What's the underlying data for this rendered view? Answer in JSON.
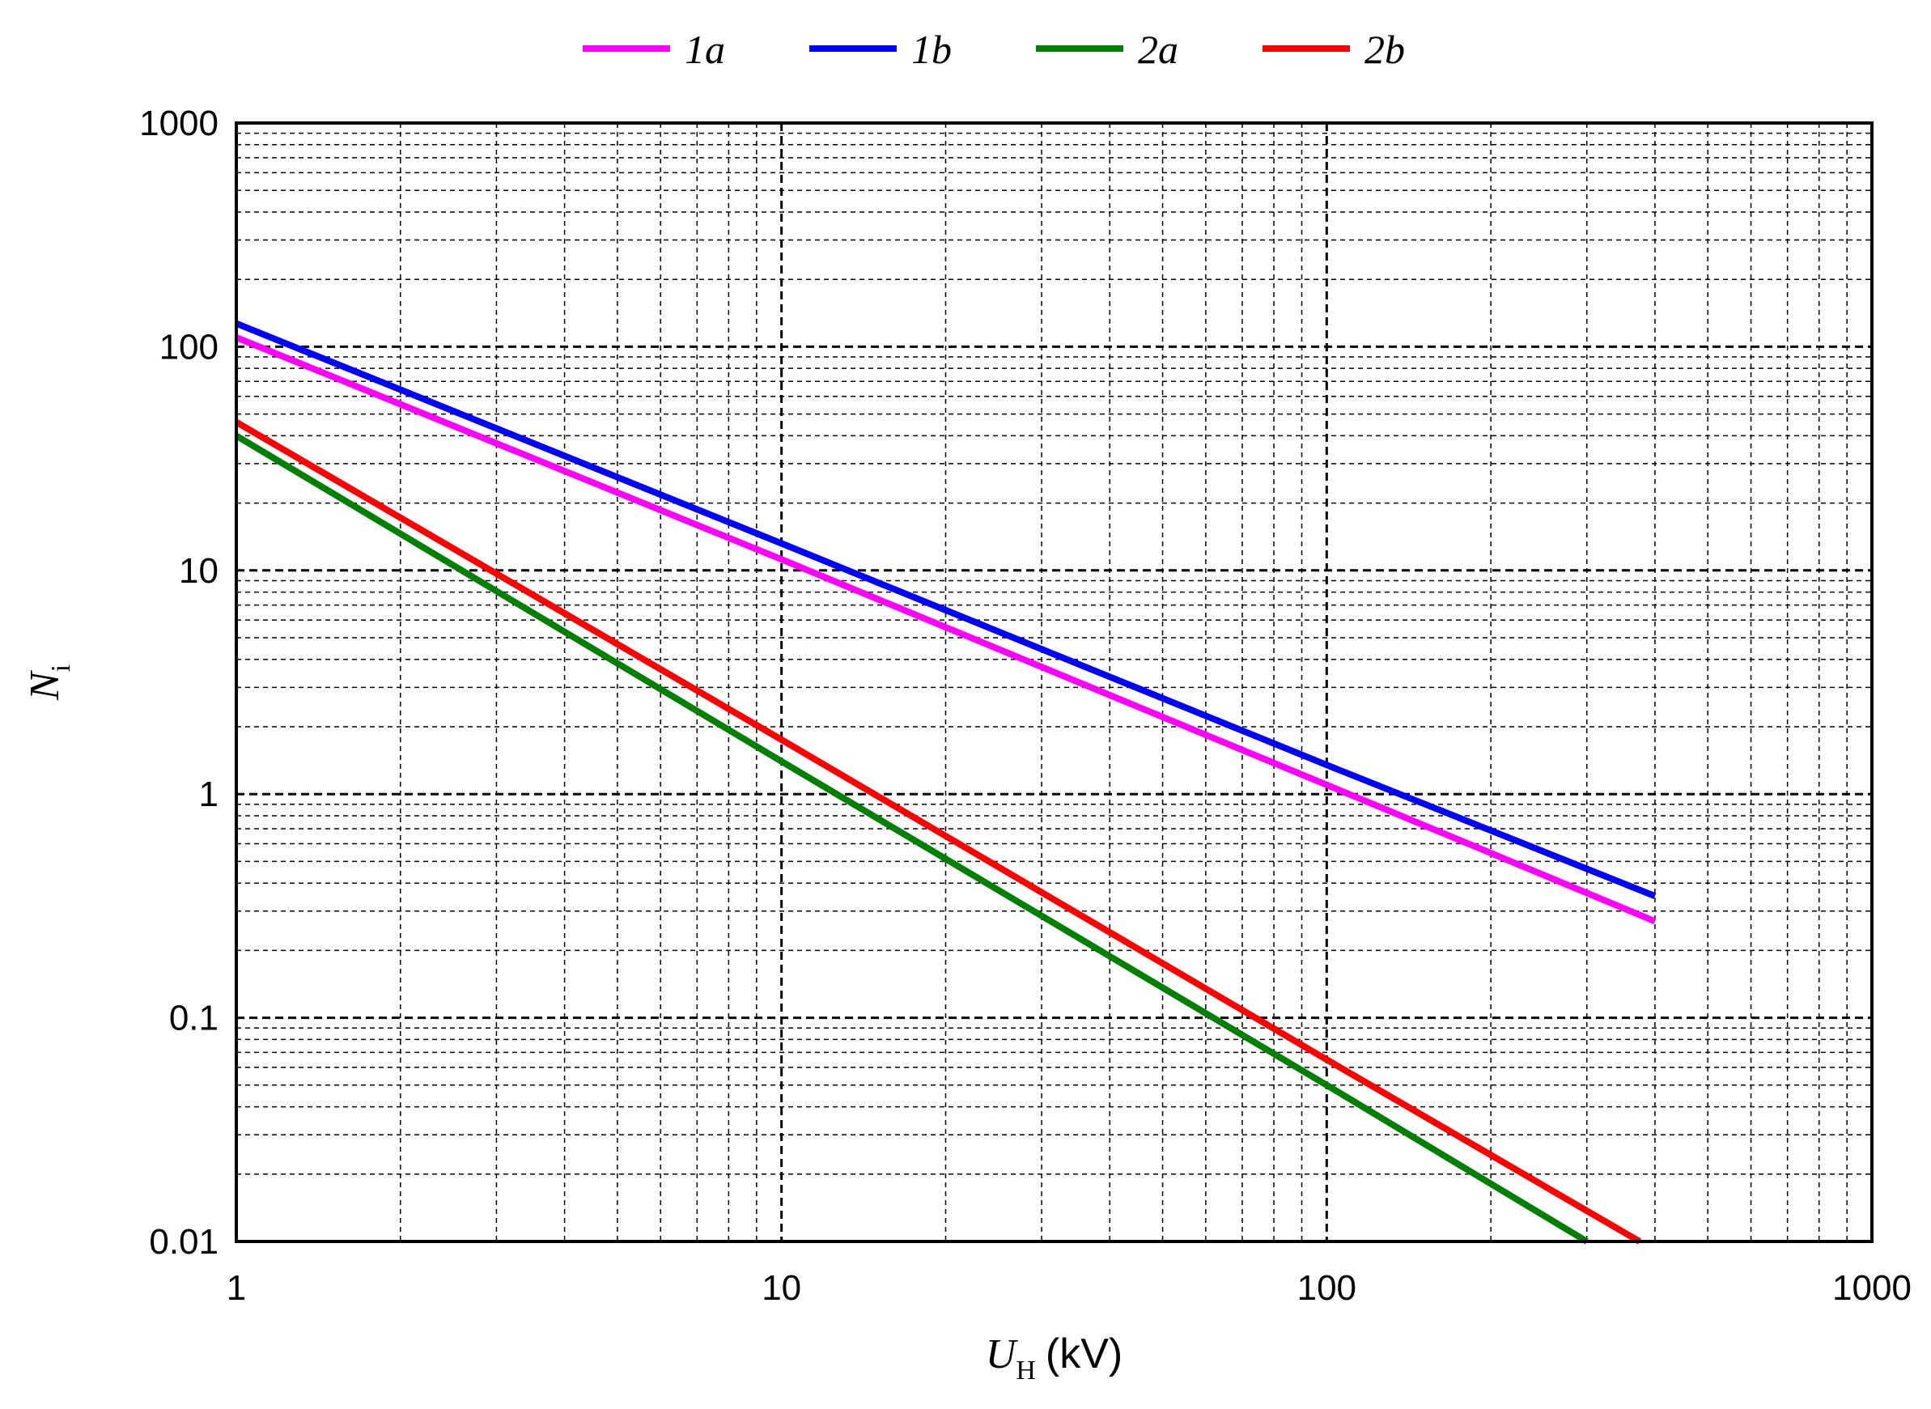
{
  "chart_data": {
    "type": "line",
    "title": "",
    "xaxis": {
      "scale": "log",
      "range": [
        1,
        1000
      ],
      "label_var": "U",
      "label_sub": "H",
      "label_unit": "(kV)"
    },
    "yaxis": {
      "scale": "log",
      "range": [
        0.01,
        1000
      ],
      "label_var": "N",
      "label_sub": "i"
    },
    "x_ticks": [
      {
        "value": 1,
        "label": "1"
      },
      {
        "value": 10,
        "label": "10"
      },
      {
        "value": 100,
        "label": "100"
      },
      {
        "value": 1000,
        "label": "1000"
      }
    ],
    "y_ticks": [
      {
        "value": 0.01,
        "label": "0.01"
      },
      {
        "value": 0.1,
        "label": "0.1"
      },
      {
        "value": 1,
        "label": "1"
      },
      {
        "value": 10,
        "label": "10"
      },
      {
        "value": 100,
        "label": "100"
      },
      {
        "value": 1000,
        "label": "1000"
      }
    ],
    "grid": true,
    "legend_position": "top-center",
    "series": [
      {
        "name": "1a",
        "color": "#ff00ff",
        "x": [
          1,
          10,
          100,
          400
        ],
        "y": [
          110,
          11.2,
          1.1,
          0.27
        ]
      },
      {
        "name": "1b",
        "color": "#0000ff",
        "x": [
          1,
          10,
          100,
          400
        ],
        "y": [
          127,
          13.2,
          1.35,
          0.35
        ]
      },
      {
        "name": "2a",
        "color": "#008000",
        "x": [
          1,
          10,
          100,
          300
        ],
        "y": [
          40,
          1.4,
          0.05,
          0.01
        ]
      },
      {
        "name": "2b",
        "color": "#ff0000",
        "x": [
          1,
          10,
          100,
          375
        ],
        "y": [
          46,
          1.75,
          0.065,
          0.01
        ]
      }
    ]
  }
}
